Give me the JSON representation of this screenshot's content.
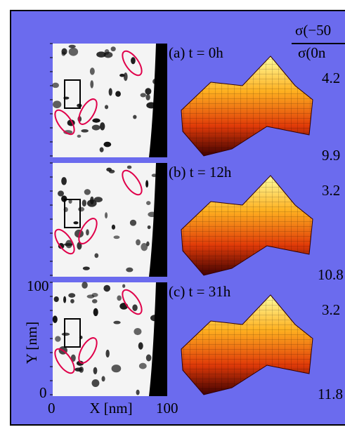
{
  "header": {
    "ratio_numerator": "σ(−50",
    "ratio_denominator": "σ(0n"
  },
  "panels": [
    {
      "label": "(a) t = 0h",
      "top_value": "4.2",
      "bottom_value": "9.9"
    },
    {
      "label": "(b) t = 12h",
      "top_value": "3.2",
      "bottom_value": "10.8"
    },
    {
      "label": "(c) t = 31h",
      "top_value": "3.2",
      "bottom_value": "11.8"
    }
  ],
  "axes": {
    "y_label": "Y [nm]",
    "x_label": "X [nm]",
    "y_tick_top": "100",
    "y_tick_bottom": "0",
    "x_tick_left": "0",
    "x_tick_right": "100"
  }
}
